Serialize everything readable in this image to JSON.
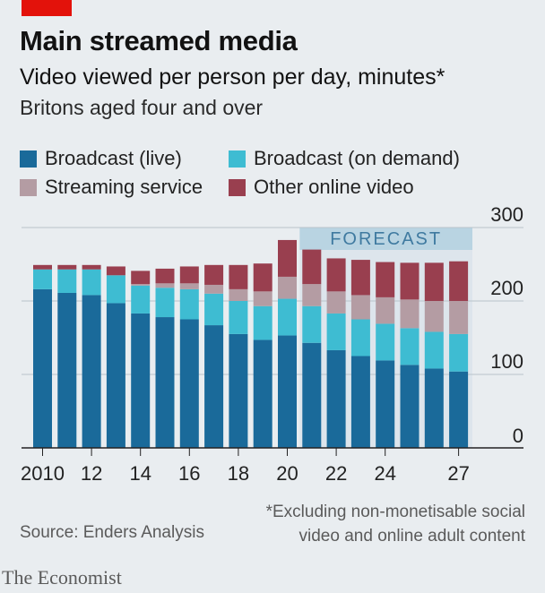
{
  "header": {
    "title": "Main streamed media",
    "subtitle": "Video viewed per person per day, minutes*",
    "subtitle2": "Britons aged four and over"
  },
  "legend": [
    {
      "label": "Broadcast (live)",
      "color": "#1a6a9a"
    },
    {
      "label": "Broadcast (on demand)",
      "color": "#3ebcd2"
    },
    {
      "label": "Streaming service",
      "color": "#b49ca3"
    },
    {
      "label": "Other online video",
      "color": "#993f4f"
    }
  ],
  "forecast_label": "FORECAST",
  "footer": {
    "source": "Source: Enders Analysis",
    "footnote_line1": "*Excluding non-monetisable social",
    "footnote_line2": "video and online adult content",
    "brand": "The Economist"
  },
  "chart_data": {
    "type": "bar",
    "stacked": true,
    "categories": [
      "2010",
      "2011",
      "2012",
      "2013",
      "2014",
      "2015",
      "2016",
      "2017",
      "2018",
      "2019",
      "2020",
      "2021",
      "2022",
      "2023",
      "2024",
      "2025",
      "2026",
      "2027"
    ],
    "x_tick_labels": [
      "2010",
      "12",
      "14",
      "16",
      "18",
      "20",
      "22",
      "24",
      "27"
    ],
    "x_tick_years": [
      "2010",
      "2012",
      "2014",
      "2016",
      "2018",
      "2020",
      "2022",
      "2024",
      "2027"
    ],
    "series": [
      {
        "name": "Broadcast (live)",
        "color": "#1a6a9a",
        "values": [
          216,
          211,
          208,
          197,
          183,
          178,
          175,
          167,
          155,
          147,
          153,
          143,
          133,
          125,
          119,
          113,
          108,
          104
        ]
      },
      {
        "name": "Broadcast (on demand)",
        "color": "#3ebcd2",
        "values": [
          27,
          32,
          35,
          38,
          38,
          40,
          41,
          43,
          45,
          46,
          50,
          50,
          50,
          50,
          50,
          50,
          50,
          51
        ]
      },
      {
        "name": "Streaming service",
        "color": "#b49ca3",
        "values": [
          0,
          0,
          0,
          0,
          2,
          6,
          8,
          12,
          16,
          20,
          30,
          30,
          30,
          33,
          36,
          39,
          42,
          45
        ]
      },
      {
        "name": "Other online video",
        "color": "#993f4f",
        "values": [
          6,
          6,
          6,
          12,
          18,
          20,
          23,
          27,
          33,
          38,
          50,
          47,
          45,
          48,
          48,
          50,
          52,
          54
        ]
      }
    ],
    "totals": [
      249,
      249,
      249,
      247,
      241,
      244,
      247,
      249,
      249,
      251,
      283,
      270,
      258,
      256,
      253,
      252,
      252,
      254
    ],
    "forecast_start": "2021",
    "y_ticks": [
      0,
      100,
      200,
      300
    ],
    "ylim": [
      0,
      300
    ],
    "grid": true
  }
}
